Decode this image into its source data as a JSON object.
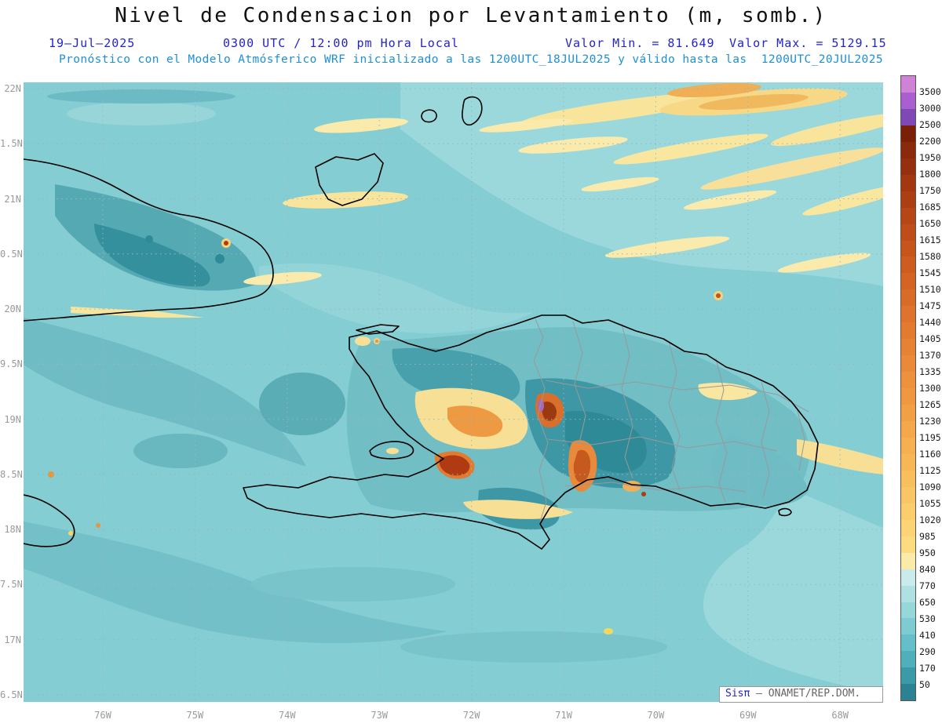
{
  "title": "Nivel de Condensacion por Levantamiento (m, somb.)",
  "header": {
    "date": "19–Jul–2025",
    "time_label": "0300 UTC / 12:00 pm Hora Local",
    "valor_min": "Valor Min. = 81.649",
    "valor_max": "Valor Max. = 5129.15",
    "forecast": "Pronóstico con el Modelo Atmósferico WRF inicializado a las 1200UTC_18JUL2025 y válido hasta las  1200UTC_20JUL2025"
  },
  "axes": {
    "y_ticks": [
      "22N",
      "1.5N",
      "21N",
      "0.5N",
      "20N",
      "9.5N",
      "19N",
      "8.5N",
      "18N",
      "7.5N",
      "17N",
      "6.5N"
    ],
    "x_ticks": [
      "76W",
      "75W",
      "74W",
      "73W",
      "72W",
      "71W",
      "70W",
      "69W",
      "68W"
    ]
  },
  "colorbar": {
    "labels": [
      "3500",
      "3000",
      "2500",
      "2200",
      "1950",
      "1800",
      "1750",
      "1685",
      "1650",
      "1615",
      "1580",
      "1545",
      "1510",
      "1475",
      "1440",
      "1405",
      "1370",
      "1335",
      "1300",
      "1265",
      "1230",
      "1195",
      "1160",
      "1125",
      "1090",
      "1055",
      "1020",
      "985",
      "950",
      "840",
      "770",
      "650",
      "530",
      "410",
      "290",
      "170",
      "50"
    ],
    "colors": [
      "#D083D6",
      "#A95FD0",
      "#7F48B5",
      "#7A2008",
      "#8A2A0C",
      "#962F0E",
      "#A23710",
      "#AC3E13",
      "#B64616",
      "#BE4D19",
      "#C6551C",
      "#CD5C20",
      "#D36424",
      "#D86B28",
      "#DD732C",
      "#E27A30",
      "#E68234",
      "#EA8938",
      "#ED913C",
      "#F09841",
      "#F2A046",
      "#F4A84B",
      "#F6AF51",
      "#F8B757",
      "#F9BE5E",
      "#FAC665",
      "#FBCD6D",
      "#FCD476",
      "#FDDC80",
      "#FAEBA8",
      "#C9EBEB",
      "#AFE1E3",
      "#96D7DA",
      "#7ECCD2",
      "#66BFC8",
      "#4FAFBA",
      "#3B9AA8",
      "#2C8293"
    ]
  },
  "watermark": {
    "brand": "Sisπ",
    "text": " – ONAMET/REP.DOM."
  },
  "palette": {
    "header_blue": "#2323CC",
    "forecast_blue": "#1E8FD6",
    "ocean_base": "#84CDD3",
    "grid_gray": "#9AB6BC",
    "tick_gray": "#9A9A9A"
  }
}
